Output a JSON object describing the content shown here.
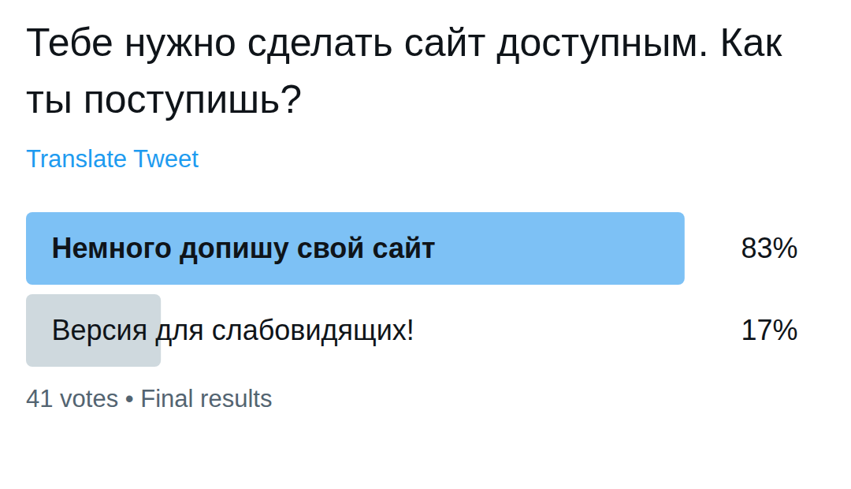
{
  "chart_data": {
    "type": "bar",
    "orientation": "horizontal",
    "title": "Тебе нужно сделать сайт доступным. Как ты поступишь?",
    "subtitle": "Translate Tweet",
    "caption": "41 votes • Final results",
    "categories": [
      "Немного допишу свой сайт",
      "Версия для слабовидящих!"
    ],
    "values": [
      83,
      17
    ],
    "value_labels": [
      "83%",
      "17%"
    ],
    "colors": [
      "#7dc1f5",
      "#cfd9de"
    ],
    "xlim": [
      0,
      100
    ],
    "data_labels": true,
    "tick_labels": false,
    "grid": false
  }
}
